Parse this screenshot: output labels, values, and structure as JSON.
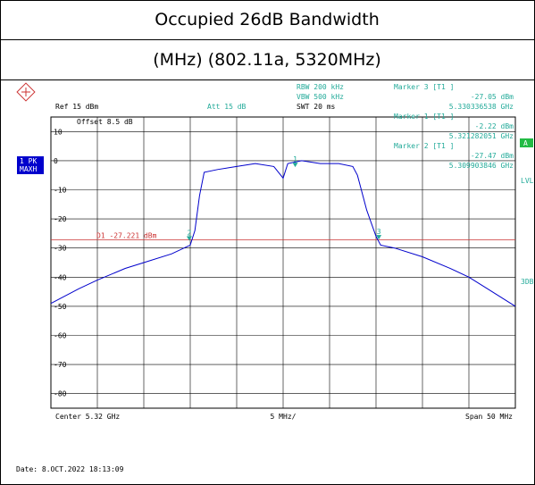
{
  "chart_data": {
    "type": "line",
    "title": "Occupied 26dB Bandwidth",
    "subtitle": "(MHz) (802.11a, 5320MHz)",
    "settings": {
      "rbw": "RBW 200 kHz",
      "vbw": "VBW 500 kHz",
      "swt": "SWT 20 ms",
      "ref": "Ref 15 dBm",
      "att": "Att 15 dB",
      "offset": "Offset 8.5 dB",
      "trace": "1 PK",
      "mode": "MAXH",
      "side_a": "A",
      "side_lvl": "LVL",
      "side_3db": "3DB"
    },
    "marker_readouts": [
      {
        "name": "Marker 3 [T1 ]",
        "level": "-27.05 dBm",
        "freq": "5.330336538 GHz"
      },
      {
        "name": "Marker 1 [T1 ]",
        "level": "-2.22 dBm",
        "freq": "5.321282051 GHz"
      },
      {
        "name": "Marker 2 [T1 ]",
        "level": "-27.47 dBm",
        "freq": "5.309903846 GHz"
      }
    ],
    "footer": {
      "center": "Center 5.32 GHz",
      "div": "5 MHz/",
      "span": "Span 50 MHz",
      "date": "Date: 8.OCT.2022 18:13:09"
    },
    "display_line": {
      "label": "D1 -27.221 dBm",
      "value": -27.221
    },
    "markers": [
      {
        "label": "1",
        "x": 1.3,
        "y": -2.22
      },
      {
        "label": "2",
        "x": -10.1,
        "y": -27.47
      },
      {
        "label": "3",
        "x": 10.3,
        "y": -27.05
      }
    ],
    "x": [
      -25,
      -22,
      -20,
      -17,
      -15,
      -12,
      -10,
      -9.5,
      -9,
      -8.5,
      -7,
      -5,
      -3,
      -1,
      0,
      0.5,
      2,
      4,
      6,
      7.5,
      8,
      9,
      10,
      10.5,
      12,
      15,
      18,
      20,
      22,
      25
    ],
    "series": [
      {
        "name": "1 PK MAXH",
        "color": "#0000cc",
        "values": [
          -49,
          -44,
          -41,
          -37,
          -35,
          -32,
          -29,
          -24,
          -12,
          -4,
          -3,
          -2,
          -1,
          -2,
          -6,
          -1,
          0,
          -1,
          -1,
          -2,
          -5,
          -17,
          -26,
          -29,
          -30,
          -33,
          -37,
          -40,
          -44,
          -50
        ]
      }
    ],
    "xlim": [
      -25,
      25
    ],
    "ylim": [
      -85,
      15
    ],
    "xticks": [
      -25,
      -20,
      -15,
      -10,
      -5,
      0,
      5,
      10,
      15,
      20,
      25
    ],
    "yticks": [
      10,
      0,
      -10,
      -20,
      -30,
      -40,
      -50,
      -60,
      -70,
      -80
    ],
    "grid": true
  }
}
